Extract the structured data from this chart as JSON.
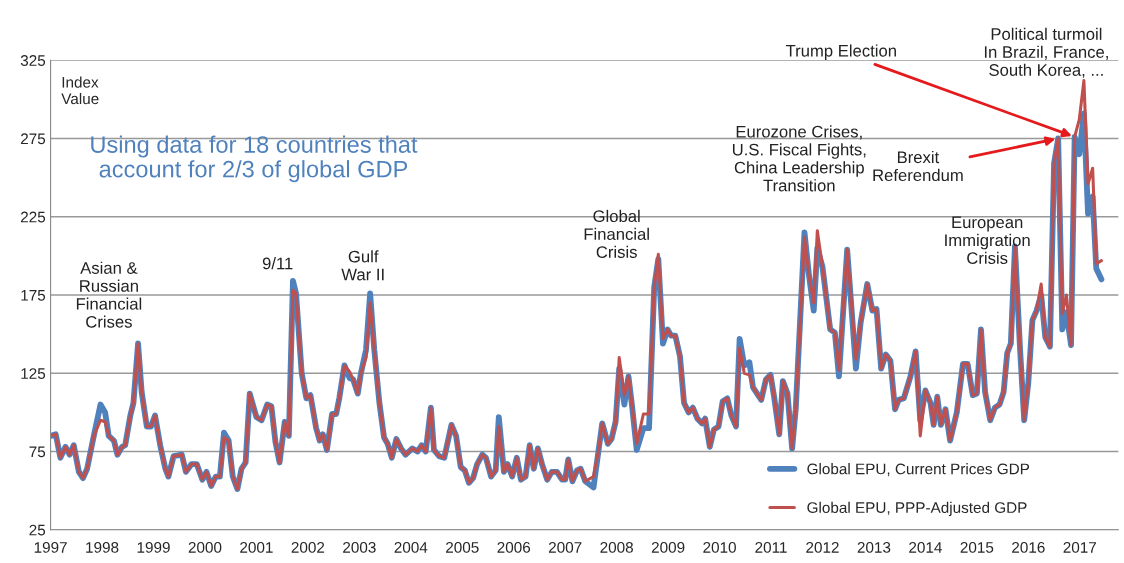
{
  "chart_data": {
    "type": "line",
    "ylabel": "Index\nValue",
    "xlim": [
      1997,
      2017.75
    ],
    "xticks": [
      1997,
      1998,
      1999,
      2000,
      2001,
      2002,
      2003,
      2004,
      2005,
      2006,
      2007,
      2008,
      2009,
      2010,
      2011,
      2012,
      2013,
      2014,
      2015,
      2016,
      2017
    ],
    "ylim": [
      25,
      325
    ],
    "yticks": [
      25,
      75,
      125,
      175,
      225,
      275,
      325
    ],
    "grid": "y",
    "legend": "bottom right",
    "line_style": "solid",
    "marker": "none",
    "x": [
      1997.0,
      1997.1,
      1997.19,
      1997.29,
      1997.37,
      1997.45,
      1997.55,
      1997.63,
      1997.71,
      1997.84,
      1997.97,
      1998.06,
      1998.13,
      1998.23,
      1998.3,
      1998.39,
      1998.45,
      1998.55,
      1998.61,
      1998.7,
      1998.77,
      1998.87,
      1998.95,
      1999.03,
      1999.13,
      1999.23,
      1999.29,
      1999.39,
      1999.55,
      1999.63,
      1999.74,
      1999.84,
      1999.95,
      2000.03,
      2000.12,
      2000.21,
      2000.29,
      2000.37,
      2000.46,
      2000.54,
      2000.63,
      2000.71,
      2000.79,
      2000.87,
      2001.0,
      2001.1,
      2001.21,
      2001.29,
      2001.37,
      2001.45,
      2001.55,
      2001.63,
      2001.71,
      2001.77,
      2001.88,
      2001.97,
      2002.05,
      2002.16,
      2002.23,
      2002.29,
      2002.37,
      2002.47,
      2002.55,
      2002.61,
      2002.71,
      2002.81,
      2002.88,
      2002.97,
      2003.03,
      2003.13,
      2003.21,
      2003.29,
      2003.39,
      2003.48,
      2003.55,
      2003.63,
      2003.72,
      2003.81,
      2003.9,
      2004.03,
      2004.13,
      2004.21,
      2004.29,
      2004.39,
      2004.45,
      2004.55,
      2004.65,
      2004.79,
      2004.88,
      2004.97,
      2005.05,
      2005.13,
      2005.21,
      2005.29,
      2005.39,
      2005.46,
      2005.56,
      2005.65,
      2005.71,
      2005.81,
      2005.88,
      2005.97,
      2006.06,
      2006.14,
      2006.23,
      2006.31,
      2006.39,
      2006.47,
      2006.55,
      2006.65,
      2006.74,
      2006.84,
      2006.94,
      2007.0,
      2007.06,
      2007.14,
      2007.23,
      2007.3,
      2007.39,
      2007.55,
      2007.65,
      2007.72,
      2007.83,
      2007.9,
      2007.98,
      2008.05,
      2008.15,
      2008.23,
      2008.3,
      2008.39,
      2008.52,
      2008.63,
      2008.73,
      2008.81,
      2008.9,
      2008.99,
      2009.06,
      2009.14,
      2009.23,
      2009.31,
      2009.4,
      2009.48,
      2009.57,
      2009.66,
      2009.72,
      2009.81,
      2009.89,
      2009.98,
      2010.06,
      2010.15,
      2010.23,
      2010.32,
      2010.39,
      2010.48,
      2010.58,
      2010.65,
      2010.81,
      2010.9,
      2010.99,
      2011.06,
      2011.16,
      2011.23,
      2011.32,
      2011.41,
      2011.48,
      2011.65,
      2011.74,
      2011.83,
      2011.9,
      2012.0,
      2012.15,
      2012.24,
      2012.32,
      2012.48,
      2012.65,
      2012.74,
      2012.87,
      2012.97,
      2013.05,
      2013.14,
      2013.23,
      2013.32,
      2013.41,
      2013.48,
      2013.58,
      2013.71,
      2013.81,
      2013.9,
      2014.0,
      2014.1,
      2014.16,
      2014.23,
      2014.3,
      2014.39,
      2014.48,
      2014.61,
      2014.73,
      2014.82,
      2014.92,
      2015.0,
      2015.08,
      2015.16,
      2015.26,
      2015.35,
      2015.44,
      2015.52,
      2015.59,
      2015.66,
      2015.74,
      2015.84,
      2015.92,
      2016.0,
      2016.08,
      2016.16,
      2016.25,
      2016.33,
      2016.42,
      2016.5,
      2016.58,
      2016.66,
      2016.74,
      2016.83,
      2016.9,
      2016.99,
      2017.08,
      2017.16,
      2017.25,
      2017.32,
      2017.42
    ],
    "series": [
      {
        "name": "Global EPU, Current Prices GDP",
        "color": "#4f81bd",
        "values": [
          85,
          86,
          71,
          78,
          73,
          79,
          62,
          58,
          64,
          85,
          105,
          100,
          85,
          82,
          73,
          78,
          79,
          98,
          106,
          144,
          113,
          91,
          91,
          98,
          79,
          64,
          59,
          72,
          73,
          62,
          67,
          67,
          57,
          62,
          53,
          59,
          59,
          87,
          82,
          59,
          51,
          64,
          68,
          112,
          97,
          95,
          105,
          104,
          81,
          68,
          94,
          85,
          184,
          176,
          125,
          109,
          111,
          90,
          82,
          86,
          76,
          99,
          99,
          109,
          130,
          122,
          121,
          112,
          125,
          140,
          176,
          140,
          106,
          84,
          80,
          71,
          83,
          77,
          73,
          77,
          75,
          79,
          75,
          103,
          76,
          72,
          71,
          92,
          85,
          65,
          63,
          55,
          58,
          67,
          73,
          71,
          59,
          63,
          97,
          62,
          67,
          59,
          71,
          57,
          59,
          79,
          64,
          77,
          67,
          57,
          62,
          62,
          57,
          57,
          70,
          56,
          63,
          64,
          56,
          52,
          76,
          93,
          80,
          83,
          94,
          128,
          105,
          123,
          104,
          76,
          90,
          90,
          180,
          198,
          144,
          153,
          149,
          149,
          136,
          106,
          100,
          103,
          96,
          93,
          96,
          78,
          89,
          91,
          107,
          109,
          98,
          91,
          147,
          130,
          132,
          116,
          108,
          121,
          124,
          110,
          86,
          120,
          112,
          77,
          102,
          215,
          187,
          165,
          205,
          193,
          153,
          151,
          123,
          204,
          128,
          157,
          182,
          165,
          166,
          128,
          137,
          133,
          102,
          108,
          109,
          123,
          139,
          95,
          114,
          106,
          92,
          110,
          92,
          102,
          82,
          100,
          131,
          131,
          111,
          112,
          153,
          113,
          95,
          103,
          105,
          113,
          138,
          144,
          206,
          140,
          95,
          119,
          159,
          165,
          175,
          148,
          142,
          259,
          275,
          153,
          164,
          143,
          276,
          265,
          291,
          227,
          238,
          192,
          185
        ]
      },
      {
        "name": "Global EPU, PPP-Adjusted GDP",
        "color": "#c0504d",
        "values": [
          85,
          86,
          71,
          78,
          73,
          79,
          62,
          58,
          64,
          85,
          95,
          94,
          85,
          82,
          73,
          78,
          79,
          98,
          106,
          144,
          113,
          91,
          91,
          98,
          79,
          64,
          59,
          72,
          73,
          62,
          67,
          67,
          57,
          62,
          53,
          59,
          59,
          84,
          82,
          59,
          51,
          64,
          68,
          112,
          97,
          95,
          105,
          104,
          81,
          68,
          94,
          85,
          178,
          176,
          125,
          109,
          111,
          90,
          82,
          86,
          76,
          99,
          99,
          109,
          130,
          126,
          121,
          112,
          125,
          135,
          170,
          140,
          106,
          84,
          80,
          71,
          83,
          77,
          73,
          77,
          75,
          79,
          75,
          103,
          76,
          72,
          71,
          92,
          85,
          65,
          63,
          55,
          58,
          67,
          73,
          71,
          59,
          63,
          91,
          62,
          67,
          59,
          71,
          57,
          59,
          79,
          64,
          77,
          67,
          57,
          62,
          62,
          57,
          57,
          70,
          56,
          63,
          64,
          56,
          59,
          76,
          93,
          80,
          83,
          94,
          135,
          111,
          123,
          104,
          80,
          99,
          99,
          180,
          201,
          147,
          153,
          149,
          149,
          136,
          106,
          100,
          103,
          96,
          93,
          96,
          78,
          89,
          91,
          107,
          109,
          98,
          91,
          141,
          125,
          124,
          116,
          108,
          121,
          124,
          110,
          86,
          120,
          112,
          77,
          102,
          212,
          187,
          170,
          216,
          193,
          153,
          151,
          127,
          204,
          134,
          157,
          182,
          165,
          166,
          128,
          137,
          133,
          102,
          108,
          109,
          123,
          139,
          85,
          114,
          106,
          92,
          110,
          92,
          102,
          82,
          100,
          131,
          131,
          111,
          112,
          153,
          113,
          95,
          103,
          105,
          113,
          138,
          144,
          206,
          140,
          95,
          119,
          159,
          165,
          182,
          148,
          142,
          259,
          275,
          163,
          175,
          143,
          276,
          287,
          312,
          246,
          256,
          195,
          197
        ]
      }
    ],
    "annotations": [
      {
        "text": "Asian &\nRussian\nFinancial\nCrises",
        "x": 1998.7,
        "y": 144
      },
      {
        "text": "9/11",
        "x": 2001.71,
        "y": 184
      },
      {
        "text": "Gulf\nWar II",
        "x": 2003.21,
        "y": 176
      },
      {
        "text": "Global\nFinancial\nCrisis",
        "x": 2008.81,
        "y": 201
      },
      {
        "text": "Eurozone Crises,\nU.S. Fiscal Fights,\nChina Leadership\nTransition",
        "x": 2011.9,
        "y": 216
      },
      {
        "text": "Brexit\nReferendum",
        "x": 2016.58,
        "y": 275
      },
      {
        "text": "Trump Election",
        "x": 2016.9,
        "y": 276
      },
      {
        "text": "European\nImmigration\nCrisis",
        "x": 2015.74,
        "y": 206
      },
      {
        "text": "Political turmoil\nIn Brazil, France,\nSouth Korea, ...",
        "x": 2017.08,
        "y": 312
      },
      "Using data for 18 countries that\naccount for 2/3 of global GDP"
    ]
  }
}
